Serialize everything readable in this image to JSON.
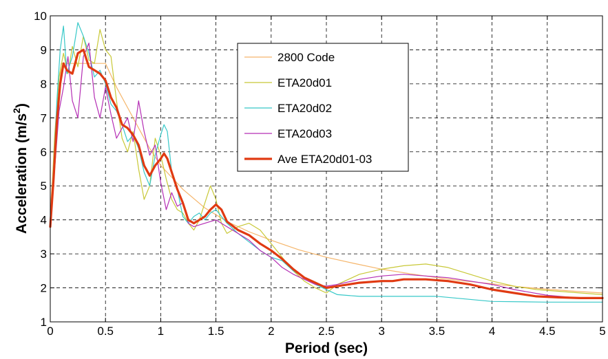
{
  "chart_data": {
    "type": "line",
    "xlabel": "Period (sec)",
    "ylabel_main": "Acceleration (m/s",
    "ylabel_sup": "2",
    "ylabel_close": ")",
    "xlim": [
      0,
      5
    ],
    "ylim": [
      1,
      10
    ],
    "xticks": [
      "0",
      "0.5",
      "1",
      "1.5",
      "2",
      "2.5",
      "3",
      "3.5",
      "4",
      "4.5",
      "5"
    ],
    "yticks": [
      "1",
      "2",
      "3",
      "4",
      "5",
      "6",
      "7",
      "8",
      "9",
      "10"
    ],
    "grid": true,
    "legend_position": "top-center",
    "series": [
      {
        "name": "2800 Code",
        "color": "#f5b56a",
        "width": 1.2,
        "x": [
          0,
          0.1,
          0.5,
          0.6,
          0.7,
          0.8,
          0.9,
          1.0,
          1.2,
          1.4,
          1.6,
          1.8,
          2.0,
          2.25,
          2.5,
          2.75,
          3.0,
          3.25,
          3.5,
          3.75,
          4.0,
          4.25,
          4.5,
          4.75,
          5.0
        ],
        "y": [
          4.3,
          8.6,
          8.6,
          7.9,
          7.3,
          6.7,
          6.1,
          5.6,
          4.9,
          4.35,
          3.95,
          3.65,
          3.4,
          3.12,
          2.9,
          2.72,
          2.55,
          2.42,
          2.3,
          2.2,
          2.12,
          2.03,
          1.96,
          1.9,
          1.85
        ]
      },
      {
        "name": "ETA20d01",
        "color": "#c8c836",
        "width": 1.2,
        "x": [
          0,
          0.04,
          0.08,
          0.12,
          0.16,
          0.2,
          0.25,
          0.3,
          0.35,
          0.4,
          0.45,
          0.5,
          0.55,
          0.6,
          0.65,
          0.7,
          0.75,
          0.8,
          0.85,
          0.9,
          0.95,
          1.0,
          1.05,
          1.1,
          1.15,
          1.2,
          1.25,
          1.3,
          1.35,
          1.4,
          1.45,
          1.5,
          1.55,
          1.6,
          1.7,
          1.8,
          1.9,
          2.0,
          2.1,
          2.2,
          2.3,
          2.4,
          2.5,
          2.6,
          2.8,
          3.0,
          3.2,
          3.4,
          3.6,
          3.8,
          4.0,
          4.2,
          4.4,
          4.6,
          4.8,
          5.0
        ],
        "y": [
          3.8,
          6.5,
          8.2,
          8.9,
          8.3,
          9.1,
          8.5,
          9.4,
          8.7,
          8.6,
          9.6,
          9.0,
          8.8,
          7.5,
          6.4,
          6.0,
          6.6,
          5.5,
          4.6,
          5.0,
          6.4,
          5.9,
          5.2,
          4.6,
          4.3,
          4.2,
          3.9,
          3.7,
          4.0,
          4.5,
          5.0,
          4.6,
          3.9,
          3.6,
          3.8,
          3.9,
          3.7,
          3.3,
          2.9,
          2.5,
          2.2,
          2.0,
          1.85,
          2.1,
          2.4,
          2.55,
          2.65,
          2.7,
          2.6,
          2.4,
          2.2,
          2.05,
          1.95,
          1.9,
          1.85,
          1.8
        ]
      },
      {
        "name": "ETA20d02",
        "color": "#36c8c8",
        "width": 1.2,
        "x": [
          0,
          0.03,
          0.06,
          0.09,
          0.12,
          0.15,
          0.2,
          0.25,
          0.3,
          0.35,
          0.4,
          0.45,
          0.5,
          0.55,
          0.6,
          0.65,
          0.7,
          0.75,
          0.8,
          0.85,
          0.9,
          0.95,
          1.0,
          1.03,
          1.06,
          1.1,
          1.15,
          1.2,
          1.25,
          1.3,
          1.35,
          1.4,
          1.45,
          1.5,
          1.6,
          1.7,
          1.8,
          1.9,
          2.0,
          2.1,
          2.2,
          2.4,
          2.6,
          2.8,
          3.0,
          3.5,
          4.0,
          4.5,
          5.0
        ],
        "y": [
          4.0,
          5.5,
          7.5,
          9.0,
          9.7,
          8.3,
          8.8,
          9.8,
          9.4,
          8.9,
          8.2,
          8.4,
          8.0,
          7.4,
          7.2,
          6.8,
          6.3,
          6.5,
          6.1,
          5.4,
          5.0,
          5.9,
          6.5,
          6.8,
          6.6,
          5.4,
          4.9,
          4.1,
          3.9,
          4.1,
          4.2,
          4.0,
          4.2,
          4.3,
          3.9,
          3.6,
          3.35,
          3.1,
          2.9,
          2.8,
          2.5,
          2.1,
          1.8,
          1.75,
          1.75,
          1.75,
          1.6,
          1.58,
          1.58
        ]
      },
      {
        "name": "ETA20d03",
        "color": "#b42db4",
        "width": 1.2,
        "x": [
          0,
          0.04,
          0.08,
          0.12,
          0.16,
          0.2,
          0.25,
          0.3,
          0.35,
          0.4,
          0.45,
          0.5,
          0.55,
          0.6,
          0.65,
          0.7,
          0.75,
          0.8,
          0.85,
          0.9,
          0.95,
          1.0,
          1.05,
          1.1,
          1.15,
          1.2,
          1.25,
          1.3,
          1.4,
          1.5,
          1.6,
          1.7,
          1.8,
          1.9,
          2.0,
          2.1,
          2.2,
          2.3,
          2.4,
          2.5,
          2.6,
          2.8,
          3.0,
          3.2,
          3.4,
          3.6,
          3.8,
          4.0,
          4.2,
          4.5,
          4.8,
          5.0
        ],
        "y": [
          3.8,
          5.5,
          7.2,
          7.9,
          8.8,
          7.5,
          7.0,
          8.8,
          9.2,
          7.6,
          7.0,
          7.9,
          7.1,
          6.4,
          6.7,
          7.0,
          6.3,
          7.5,
          6.6,
          5.9,
          6.2,
          5.1,
          4.3,
          4.8,
          4.4,
          4.5,
          3.9,
          3.8,
          3.9,
          4.0,
          3.8,
          3.6,
          3.4,
          3.1,
          2.9,
          2.6,
          2.4,
          2.25,
          2.1,
          2.05,
          2.1,
          2.25,
          2.35,
          2.4,
          2.35,
          2.3,
          2.2,
          2.1,
          1.95,
          1.78,
          1.7,
          1.68
        ]
      },
      {
        "name": "Ave ETA20d01-03",
        "color": "#e03a12",
        "width": 3.2,
        "x": [
          0,
          0.03,
          0.06,
          0.09,
          0.12,
          0.15,
          0.2,
          0.25,
          0.3,
          0.35,
          0.4,
          0.45,
          0.5,
          0.55,
          0.6,
          0.65,
          0.7,
          0.75,
          0.8,
          0.85,
          0.9,
          0.95,
          1.0,
          1.03,
          1.06,
          1.1,
          1.15,
          1.2,
          1.25,
          1.3,
          1.35,
          1.4,
          1.45,
          1.5,
          1.55,
          1.6,
          1.7,
          1.8,
          1.9,
          2.0,
          2.1,
          2.2,
          2.3,
          2.4,
          2.5,
          2.6,
          2.8,
          3.0,
          3.1,
          3.2,
          3.4,
          3.6,
          3.8,
          4.0,
          4.2,
          4.4,
          4.6,
          4.8,
          5.0
        ],
        "y": [
          3.8,
          5.2,
          6.9,
          8.0,
          8.6,
          8.4,
          8.3,
          8.9,
          9.0,
          8.5,
          8.4,
          8.3,
          8.1,
          7.6,
          7.3,
          6.8,
          6.7,
          6.5,
          6.2,
          5.6,
          5.3,
          5.6,
          5.8,
          5.95,
          5.8,
          5.4,
          4.9,
          4.5,
          4.0,
          3.9,
          4.0,
          4.1,
          4.3,
          4.45,
          4.3,
          3.95,
          3.7,
          3.55,
          3.3,
          3.1,
          2.85,
          2.55,
          2.3,
          2.15,
          2.0,
          2.05,
          2.15,
          2.2,
          2.2,
          2.25,
          2.25,
          2.2,
          2.1,
          1.95,
          1.85,
          1.75,
          1.72,
          1.7,
          1.7
        ]
      }
    ]
  }
}
